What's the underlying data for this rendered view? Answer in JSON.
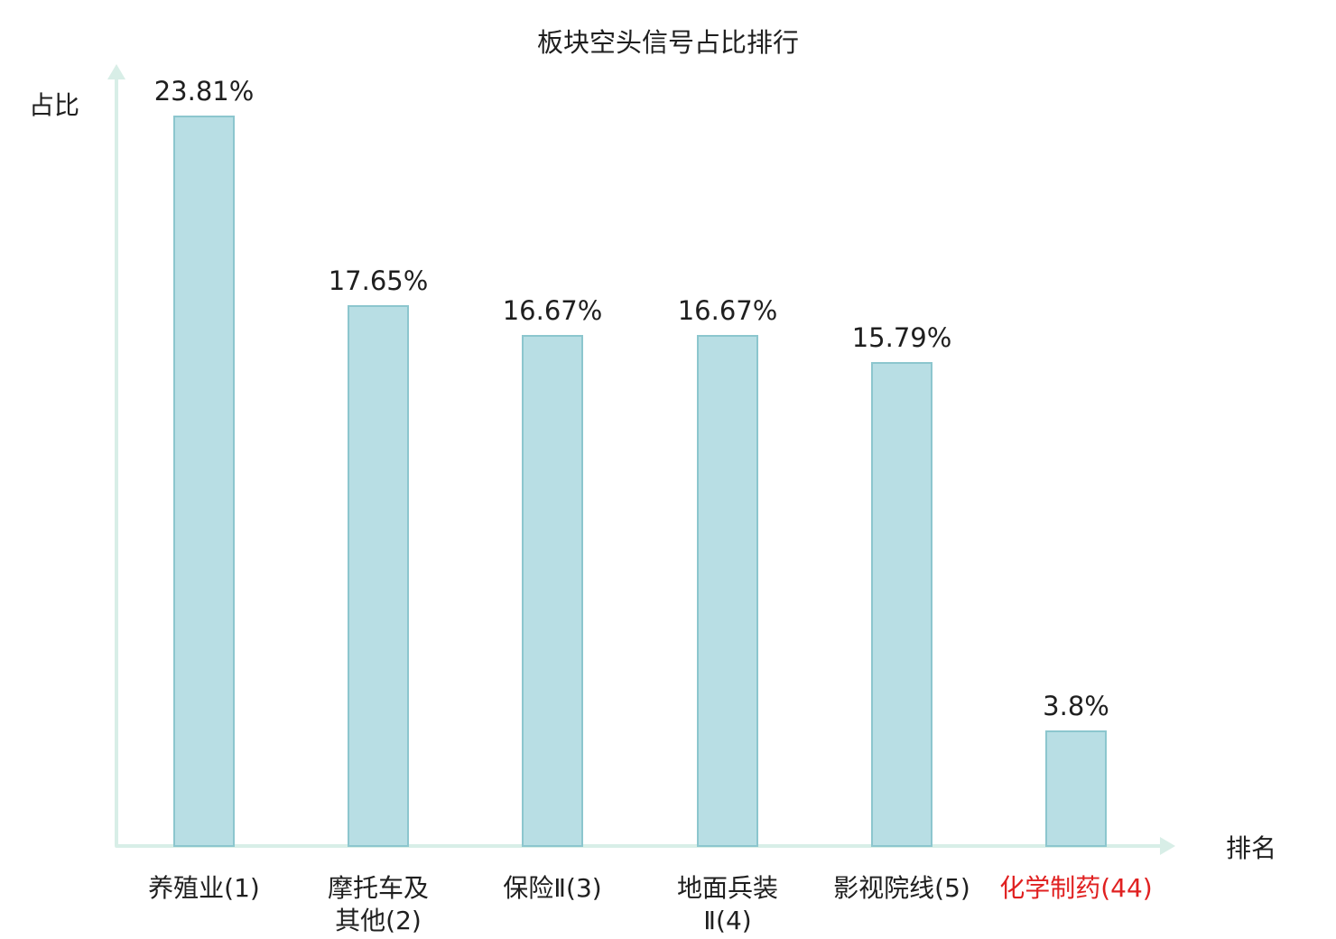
{
  "chart_data": {
    "type": "bar",
    "title": "板块空头信号占比排行",
    "xlabel": "排名",
    "ylabel": "占比",
    "categories": [
      "养殖业(1)",
      "摩托车及\n其他(2)",
      "保险Ⅱ(3)",
      "地面兵装\nⅡ(4)",
      "影视院线(5)",
      "化学制药(44)"
    ],
    "values": [
      23.81,
      17.65,
      16.67,
      16.67,
      15.79,
      3.8
    ],
    "value_labels": [
      "23.81%",
      "17.65%",
      "16.67%",
      "16.67%",
      "15.79%",
      "3.8%"
    ],
    "category_colors": [
      "#1f1f1f",
      "#1f1f1f",
      "#1f1f1f",
      "#1f1f1f",
      "#1f1f1f",
      "#e02020"
    ],
    "bar_fill": "#b8dee4",
    "bar_border": "#8cc6ce",
    "axis_color": "#d8eee7",
    "text_color": "#1f1f1f",
    "highlight_color": "#e02020",
    "ylim": [
      0,
      25
    ],
    "grid": false,
    "legend_position": "none"
  }
}
